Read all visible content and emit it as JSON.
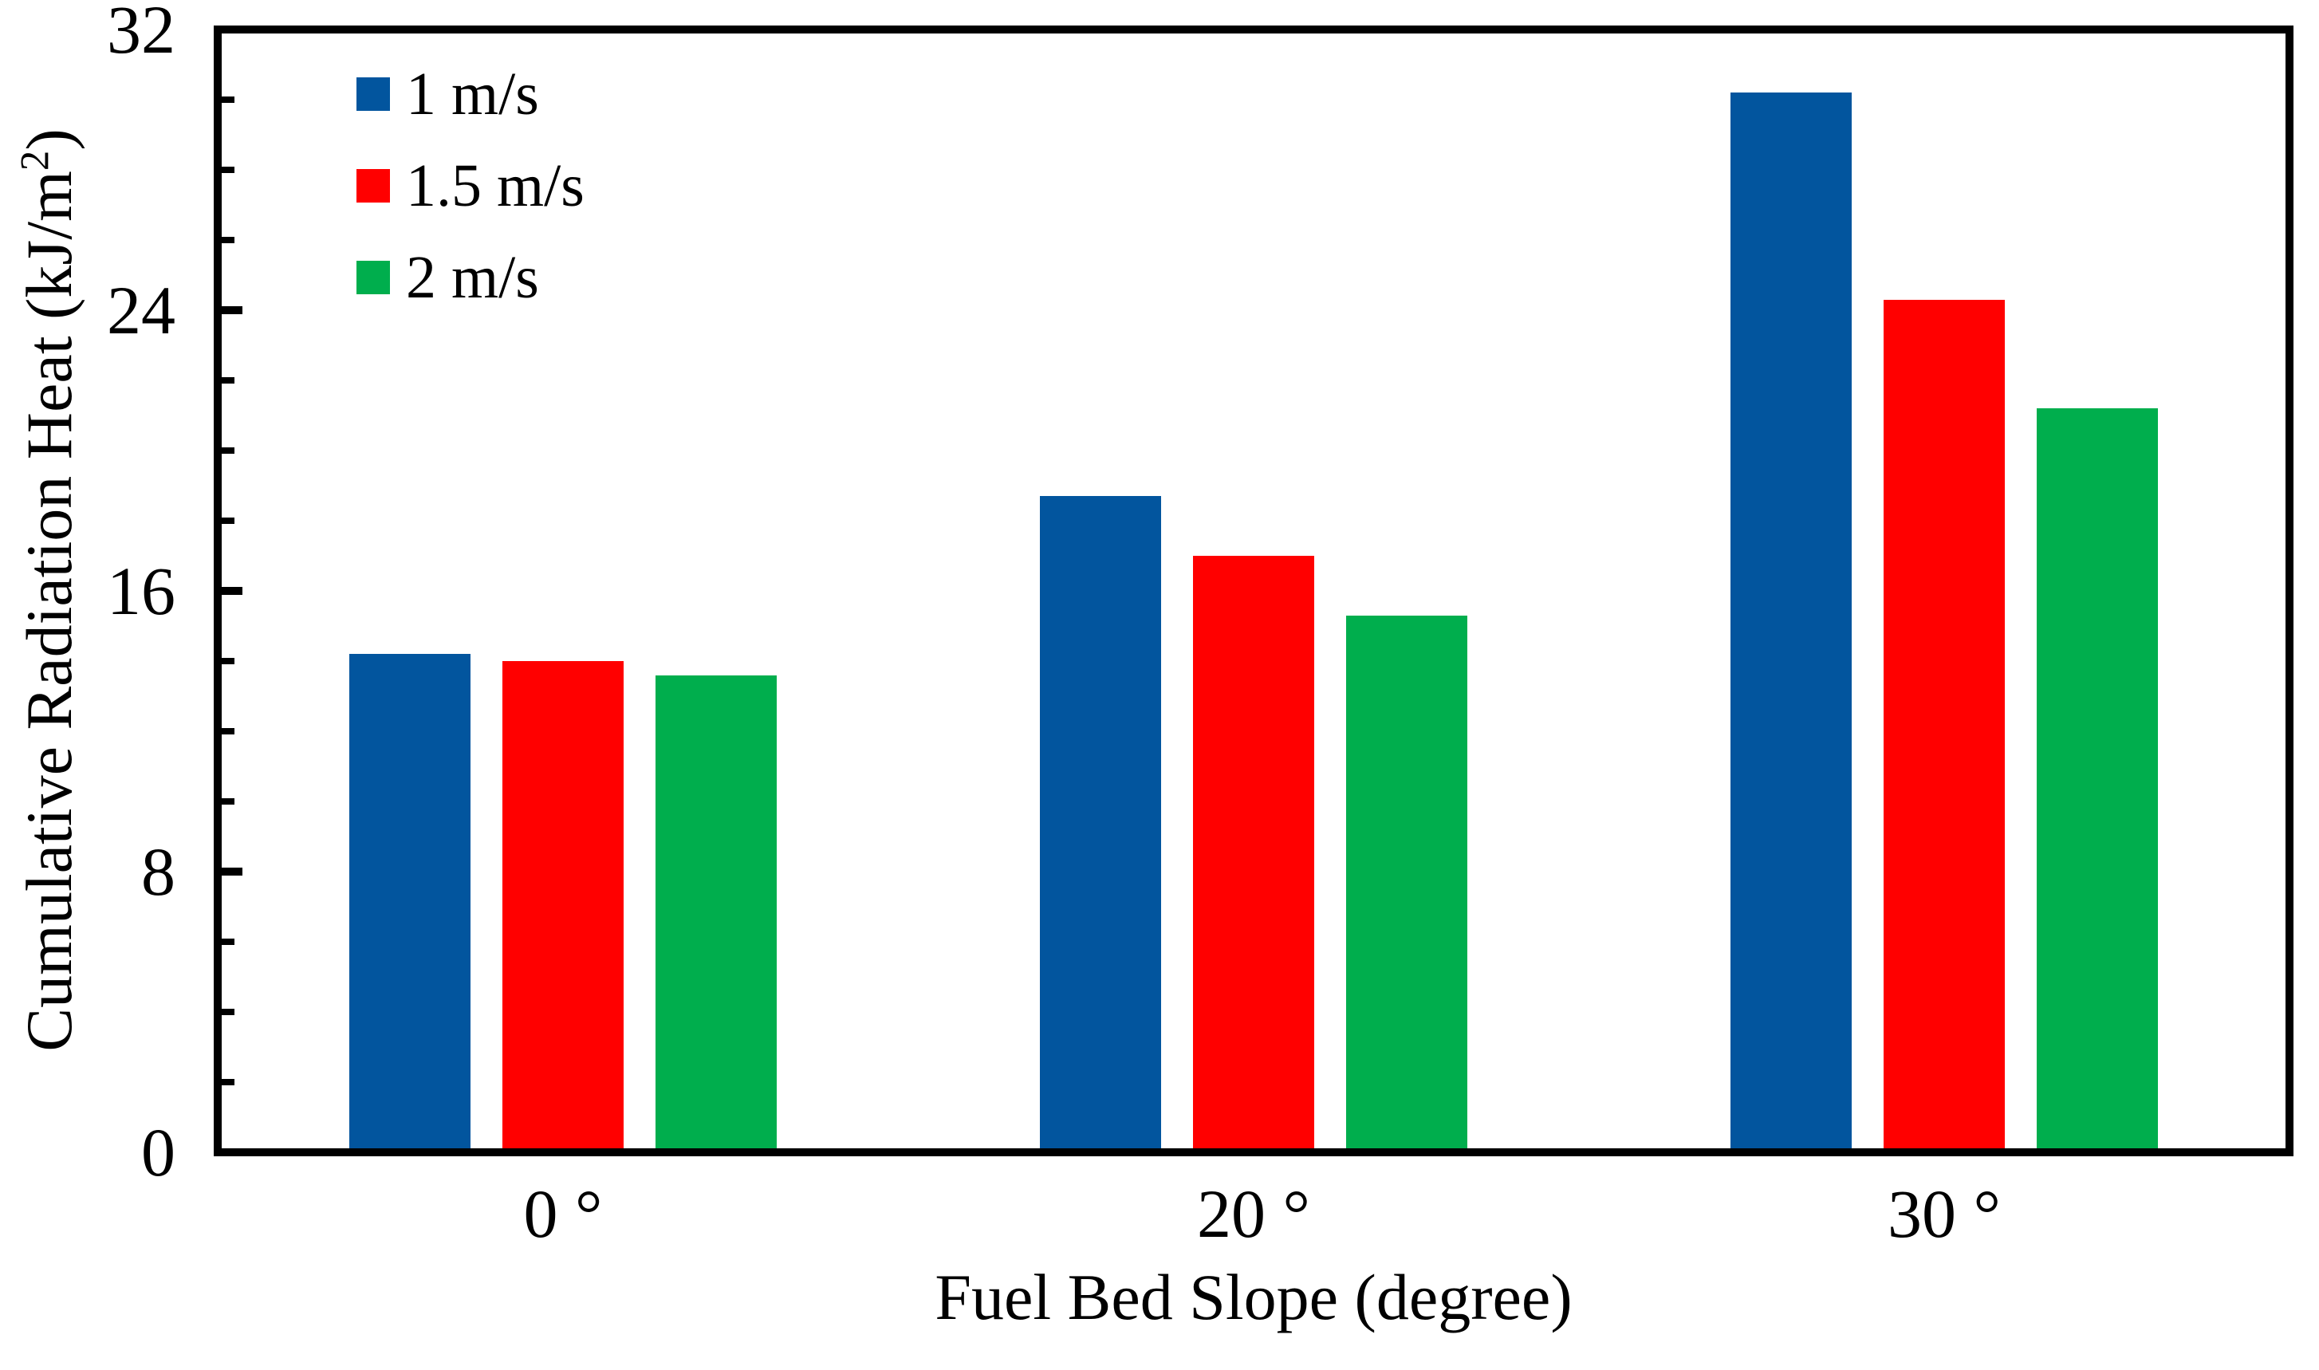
{
  "figure": {
    "y_axis": {
      "title_prefix": "Cumulative Radiation Heat (kJ/m",
      "title_sup": "2",
      "title_suffix": ")"
    },
    "x_axis": {
      "title": "Fuel Bed Slope (degree)"
    }
  },
  "chart_data": {
    "type": "bar",
    "title": "",
    "xlabel": "Fuel Bed Slope (degree)",
    "ylabel": "Cumulative Radiation Heat (kJ/m2)",
    "categories": [
      "0 °",
      "20 °",
      "30 °"
    ],
    "series": [
      {
        "name": "1 m/s",
        "color": "#02559E",
        "values": [
          14.2,
          18.7,
          30.2
        ]
      },
      {
        "name": "1.5 m/s",
        "color": "#FF0000",
        "values": [
          14.0,
          17.0,
          24.3
        ]
      },
      {
        "name": "2 m/s",
        "color": "#00AE4D",
        "values": [
          13.6,
          15.3,
          21.2
        ]
      }
    ],
    "ylim": [
      0,
      32
    ],
    "yticks": [
      0,
      8,
      16,
      24,
      32
    ],
    "minor_tick_step": 2,
    "grid": false,
    "legend_position": "top-left-inside",
    "frame": true
  }
}
